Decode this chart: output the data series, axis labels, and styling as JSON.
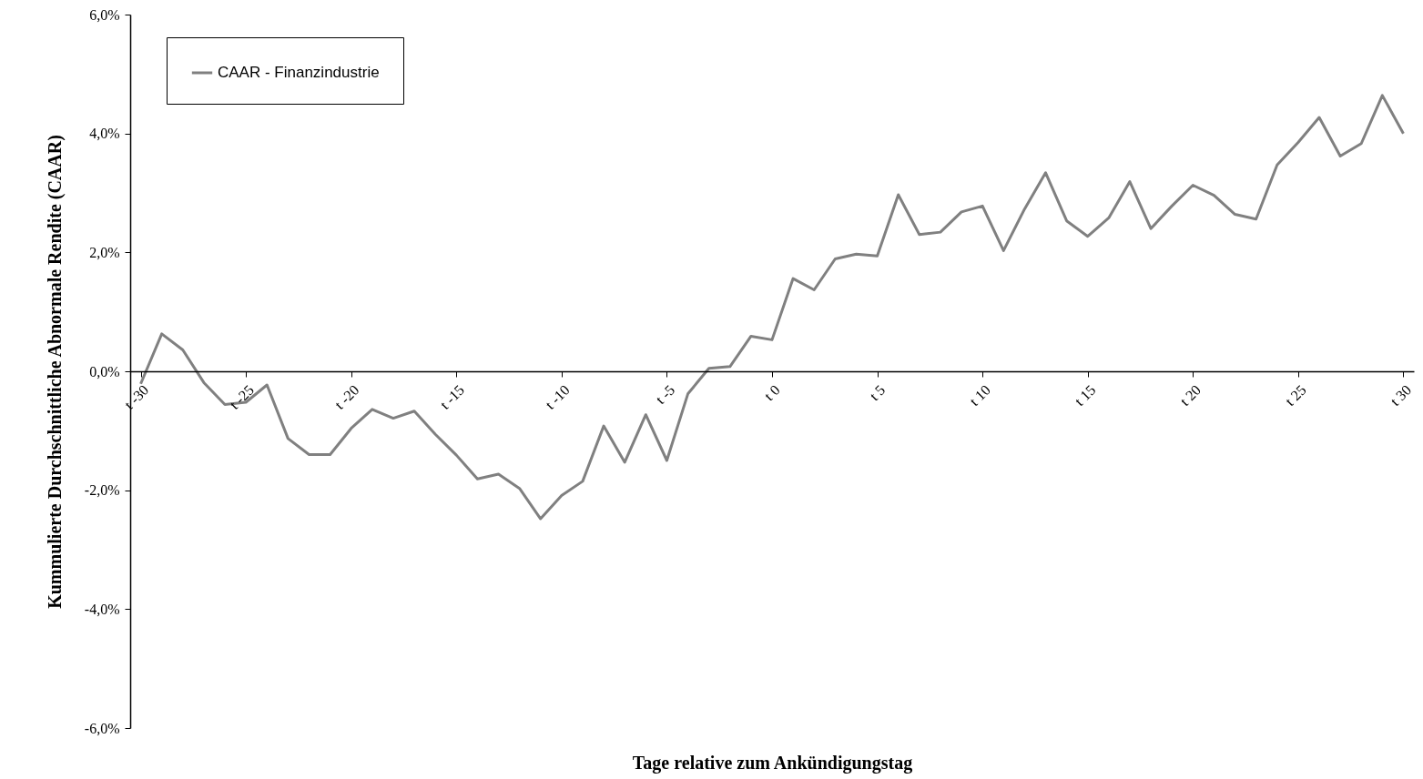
{
  "chart_data": {
    "type": "line",
    "xlabel": "Tage relative zum Ankündigungstag",
    "ylabel": "Kummulierte Durchschnittliche Abnormale Rendite (CAAR)",
    "categories": [
      "t -30",
      null,
      null,
      null,
      null,
      "t -25",
      null,
      null,
      null,
      null,
      "t -20",
      null,
      null,
      null,
      null,
      "t -15",
      null,
      null,
      null,
      null,
      "t -10",
      null,
      null,
      null,
      null,
      "t -5",
      null,
      null,
      null,
      null,
      "t 0",
      null,
      null,
      null,
      null,
      "t 5",
      null,
      null,
      null,
      null,
      "t 10",
      null,
      null,
      null,
      null,
      "t 15",
      null,
      null,
      null,
      null,
      "t 20",
      null,
      null,
      null,
      null,
      "t 25",
      null,
      null,
      null,
      null,
      "t 30"
    ],
    "series": [
      {
        "name": "CAAR - Finanzindustrie",
        "color": "#808080",
        "values": [
          -0.21,
          0.63,
          0.36,
          -0.19,
          -0.56,
          -0.52,
          -0.23,
          -1.13,
          -1.4,
          -1.4,
          -0.96,
          -0.64,
          -0.79,
          -0.67,
          -1.06,
          -1.41,
          -1.81,
          -1.73,
          -1.97,
          -2.48,
          -2.09,
          -1.85,
          -0.92,
          -1.53,
          -0.73,
          -1.5,
          -0.38,
          0.05,
          0.08,
          0.59,
          0.53,
          1.56,
          1.37,
          1.89,
          1.97,
          1.94,
          2.97,
          2.3,
          2.34,
          2.68,
          2.78,
          2.03,
          2.73,
          3.34,
          2.53,
          2.27,
          2.58,
          3.19,
          2.4,
          2.78,
          3.13,
          2.96,
          2.64,
          2.56,
          3.47,
          3.85,
          4.27,
          3.62,
          3.83,
          4.64,
          4.0
        ]
      }
    ],
    "ylim": [
      -6,
      6
    ],
    "yticks": [
      {
        "value": -6,
        "label": "-6,0%"
      },
      {
        "value": -4,
        "label": "-4,0%"
      },
      {
        "value": -2,
        "label": "-2,0%"
      },
      {
        "value": 0,
        "label": "0,0%"
      },
      {
        "value": 2,
        "label": "2,0%"
      },
      {
        "value": 4,
        "label": "4,0%"
      },
      {
        "value": 6,
        "label": "6,0%"
      }
    ],
    "grid": false,
    "legend": "top left",
    "marker": "none",
    "line_style": "solid"
  }
}
